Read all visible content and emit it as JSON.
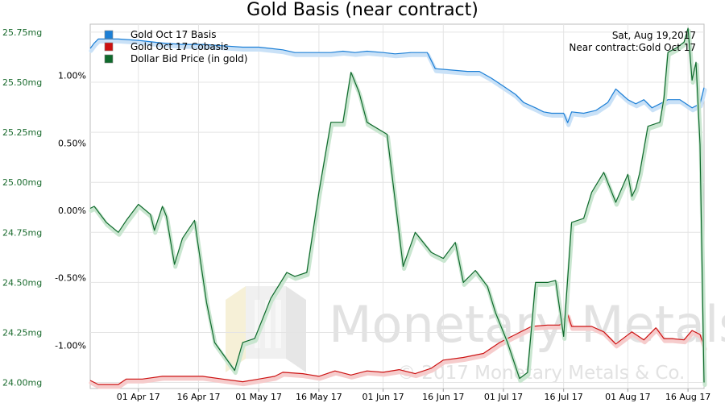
{
  "chart_data": {
    "type": "line",
    "title": "Gold Basis (near contract)",
    "info": {
      "date": "Sat, Aug 19,2017",
      "contract": "Near contract:Gold Oct 17"
    },
    "watermark": {
      "brand": "Monetary Metals",
      "copyright": "© 2017 Monetary Metals & Co."
    },
    "legend_position": "top-left",
    "grid": true,
    "x_axis": {
      "range": [
        "2017-03-20",
        "2017-08-20"
      ],
      "ticks": [
        {
          "date": "2017-04-01",
          "label": "01 Apr 17"
        },
        {
          "date": "2017-04-16",
          "label": "16 Apr 17"
        },
        {
          "date": "2017-05-01",
          "label": "01 May 17"
        },
        {
          "date": "2017-05-16",
          "label": "16 May 17"
        },
        {
          "date": "2017-06-01",
          "label": "01 Jun 17"
        },
        {
          "date": "2017-06-16",
          "label": "16 Jun 17"
        },
        {
          "date": "2017-07-01",
          "label": "01 Jul 17"
        },
        {
          "date": "2017-07-16",
          "label": "16 Jul 17"
        },
        {
          "date": "2017-08-01",
          "label": "01 Aug 17"
        },
        {
          "date": "2017-08-16",
          "label": "16 Aug 17"
        }
      ]
    },
    "left_axis": {
      "unit": "mg",
      "range": [
        23.97,
        25.79
      ],
      "ticks": [
        {
          "value": 24.0,
          "label": "24.00mg"
        },
        {
          "value": 24.25,
          "label": "24.25mg"
        },
        {
          "value": 24.5,
          "label": "24.50mg"
        },
        {
          "value": 24.75,
          "label": "24.75mg"
        },
        {
          "value": 25.0,
          "label": "25.00mg"
        },
        {
          "value": 25.25,
          "label": "25.25mg"
        },
        {
          "value": 25.5,
          "label": "25.50mg"
        },
        {
          "value": 25.75,
          "label": "25.75mg"
        }
      ]
    },
    "right_axis": {
      "unit": "%",
      "range": [
        -1.32,
        1.38
      ],
      "ticks": [
        {
          "value": -1.0,
          "label": "-1.00%"
        },
        {
          "value": -0.5,
          "label": "-0.50%"
        },
        {
          "value": 0.0,
          "label": "0.00%"
        },
        {
          "value": 0.5,
          "label": "0.50%"
        },
        {
          "value": 1.0,
          "label": "1.00%"
        }
      ]
    },
    "series": [
      {
        "name": "Gold Oct 17 Basis",
        "color": "#1c7fd6",
        "shadow": "#c9e1f7",
        "axis": "right",
        "points": [
          [
            "2017-03-20",
            1.2
          ],
          [
            "2017-03-21",
            1.24
          ],
          [
            "2017-03-22",
            1.27
          ],
          [
            "2017-03-27",
            1.27
          ],
          [
            "2017-04-01",
            1.26
          ],
          [
            "2017-04-07",
            1.24
          ],
          [
            "2017-04-12",
            1.23
          ],
          [
            "2017-04-17",
            1.23
          ],
          [
            "2017-04-22",
            1.22
          ],
          [
            "2017-04-27",
            1.21
          ],
          [
            "2017-05-01",
            1.21
          ],
          [
            "2017-05-04",
            1.2
          ],
          [
            "2017-05-07",
            1.19
          ],
          [
            "2017-05-10",
            1.17
          ],
          [
            "2017-05-15",
            1.17
          ],
          [
            "2017-05-19",
            1.17
          ],
          [
            "2017-05-22",
            1.18
          ],
          [
            "2017-05-25",
            1.17
          ],
          [
            "2017-05-28",
            1.18
          ],
          [
            "2017-06-01",
            1.17
          ],
          [
            "2017-06-04",
            1.16
          ],
          [
            "2017-06-08",
            1.17
          ],
          [
            "2017-06-12",
            1.17
          ],
          [
            "2017-06-14",
            1.05
          ],
          [
            "2017-06-18",
            1.04
          ],
          [
            "2017-06-22",
            1.03
          ],
          [
            "2017-06-25",
            1.03
          ],
          [
            "2017-06-28",
            0.98
          ],
          [
            "2017-07-01",
            0.92
          ],
          [
            "2017-07-04",
            0.86
          ],
          [
            "2017-07-06",
            0.8
          ],
          [
            "2017-07-09",
            0.76
          ],
          [
            "2017-07-11",
            0.73
          ],
          [
            "2017-07-13",
            0.72
          ],
          [
            "2017-07-16",
            0.72
          ],
          [
            "2017-07-17",
            0.65
          ],
          [
            "2017-07-18",
            0.73
          ],
          [
            "2017-07-21",
            0.72
          ],
          [
            "2017-07-24",
            0.74
          ],
          [
            "2017-07-27",
            0.8
          ],
          [
            "2017-07-29",
            0.9
          ],
          [
            "2017-08-01",
            0.82
          ],
          [
            "2017-08-03",
            0.79
          ],
          [
            "2017-08-05",
            0.82
          ],
          [
            "2017-08-07",
            0.76
          ],
          [
            "2017-08-09",
            0.79
          ],
          [
            "2017-08-11",
            0.82
          ],
          [
            "2017-08-14",
            0.82
          ],
          [
            "2017-08-17",
            0.76
          ],
          [
            "2017-08-19",
            0.79
          ],
          [
            "2017-08-20",
            0.91
          ]
        ]
      },
      {
        "name": "Gold Oct 17 Cobasis",
        "color": "#cc1111",
        "shadow": "#f6cccc",
        "axis": "right",
        "points": [
          [
            "2017-03-20",
            -1.26
          ],
          [
            "2017-03-22",
            -1.29
          ],
          [
            "2017-03-27",
            -1.29
          ],
          [
            "2017-03-29",
            -1.25
          ],
          [
            "2017-04-02",
            -1.25
          ],
          [
            "2017-04-07",
            -1.23
          ],
          [
            "2017-04-12",
            -1.23
          ],
          [
            "2017-04-17",
            -1.23
          ],
          [
            "2017-04-22",
            -1.25
          ],
          [
            "2017-04-27",
            -1.27
          ],
          [
            "2017-05-01",
            -1.25
          ],
          [
            "2017-05-05",
            -1.23
          ],
          [
            "2017-05-07",
            -1.2
          ],
          [
            "2017-05-12",
            -1.21
          ],
          [
            "2017-05-16",
            -1.23
          ],
          [
            "2017-05-20",
            -1.19
          ],
          [
            "2017-05-24",
            -1.22
          ],
          [
            "2017-05-28",
            -1.19
          ],
          [
            "2017-06-01",
            -1.2
          ],
          [
            "2017-06-05",
            -1.18
          ],
          [
            "2017-06-09",
            -1.21
          ],
          [
            "2017-06-13",
            -1.17
          ],
          [
            "2017-06-16",
            -1.11
          ],
          [
            "2017-06-21",
            -1.09
          ],
          [
            "2017-06-26",
            -1.06
          ],
          [
            "2017-06-30",
            -0.98
          ],
          [
            "2017-07-04",
            -0.92
          ],
          [
            "2017-07-08",
            -0.86
          ],
          [
            "2017-07-12",
            -0.85
          ],
          [
            "2017-07-15",
            -0.85
          ],
          [
            "2017-07-17",
            -0.77
          ],
          [
            "2017-07-18",
            -0.86
          ],
          [
            "2017-07-23",
            -0.86
          ],
          [
            "2017-07-26",
            -0.9
          ],
          [
            "2017-07-29",
            -0.99
          ],
          [
            "2017-08-02",
            -0.9
          ],
          [
            "2017-08-05",
            -0.96
          ],
          [
            "2017-08-08",
            -0.87
          ],
          [
            "2017-08-10",
            -0.95
          ],
          [
            "2017-08-12",
            -0.95
          ],
          [
            "2017-08-15",
            -0.96
          ],
          [
            "2017-08-17",
            -0.89
          ],
          [
            "2017-08-19",
            -0.92
          ],
          [
            "2017-08-20",
            -1.01
          ]
        ]
      },
      {
        "name": "Dollar Bid Price (in gold)",
        "color": "#0f6a2c",
        "shadow": "#c9e6d0",
        "axis": "left",
        "points": [
          [
            "2017-03-20",
            24.87
          ],
          [
            "2017-03-21",
            24.88
          ],
          [
            "2017-03-24",
            24.8
          ],
          [
            "2017-03-27",
            24.75
          ],
          [
            "2017-03-29",
            24.81
          ],
          [
            "2017-04-01",
            24.89
          ],
          [
            "2017-04-04",
            24.84
          ],
          [
            "2017-04-05",
            24.76
          ],
          [
            "2017-04-07",
            24.88
          ],
          [
            "2017-04-08",
            24.83
          ],
          [
            "2017-04-10",
            24.59
          ],
          [
            "2017-04-12",
            24.72
          ],
          [
            "2017-04-15",
            24.81
          ],
          [
            "2017-04-18",
            24.4
          ],
          [
            "2017-04-20",
            24.2
          ],
          [
            "2017-04-25",
            24.06
          ],
          [
            "2017-04-27",
            24.2
          ],
          [
            "2017-04-30",
            24.22
          ],
          [
            "2017-05-02",
            24.32
          ],
          [
            "2017-05-04",
            24.42
          ],
          [
            "2017-05-08",
            24.55
          ],
          [
            "2017-05-10",
            24.53
          ],
          [
            "2017-05-13",
            24.55
          ],
          [
            "2017-05-16",
            24.95
          ],
          [
            "2017-05-19",
            25.3
          ],
          [
            "2017-05-22",
            25.3
          ],
          [
            "2017-05-24",
            25.55
          ],
          [
            "2017-05-26",
            25.45
          ],
          [
            "2017-05-28",
            25.3
          ],
          [
            "2017-06-02",
            25.24
          ],
          [
            "2017-06-06",
            24.58
          ],
          [
            "2017-06-09",
            24.75
          ],
          [
            "2017-06-13",
            24.65
          ],
          [
            "2017-06-16",
            24.62
          ],
          [
            "2017-06-19",
            24.7
          ],
          [
            "2017-06-21",
            24.5
          ],
          [
            "2017-06-24",
            24.56
          ],
          [
            "2017-06-27",
            24.48
          ],
          [
            "2017-06-29",
            24.35
          ],
          [
            "2017-07-02",
            24.2
          ],
          [
            "2017-07-05",
            24.02
          ],
          [
            "2017-07-07",
            24.05
          ],
          [
            "2017-07-09",
            24.5
          ],
          [
            "2017-07-12",
            24.5
          ],
          [
            "2017-07-14",
            24.51
          ],
          [
            "2017-07-16",
            24.23
          ],
          [
            "2017-07-18",
            24.8
          ],
          [
            "2017-07-21",
            24.82
          ],
          [
            "2017-07-23",
            24.95
          ],
          [
            "2017-07-26",
            25.05
          ],
          [
            "2017-07-29",
            24.9
          ],
          [
            "2017-08-01",
            25.04
          ],
          [
            "2017-08-02",
            24.93
          ],
          [
            "2017-08-03",
            24.97
          ],
          [
            "2017-08-04",
            25.05
          ],
          [
            "2017-08-06",
            25.28
          ],
          [
            "2017-08-09",
            25.3
          ],
          [
            "2017-08-10",
            25.42
          ],
          [
            "2017-08-11",
            25.65
          ],
          [
            "2017-08-13",
            25.67
          ],
          [
            "2017-08-15",
            25.7
          ],
          [
            "2017-08-16",
            25.77
          ],
          [
            "2017-08-17",
            25.51
          ],
          [
            "2017-08-18",
            25.6
          ],
          [
            "2017-08-19",
            25.19
          ],
          [
            "2017-08-20",
            24.0
          ]
        ]
      }
    ]
  }
}
